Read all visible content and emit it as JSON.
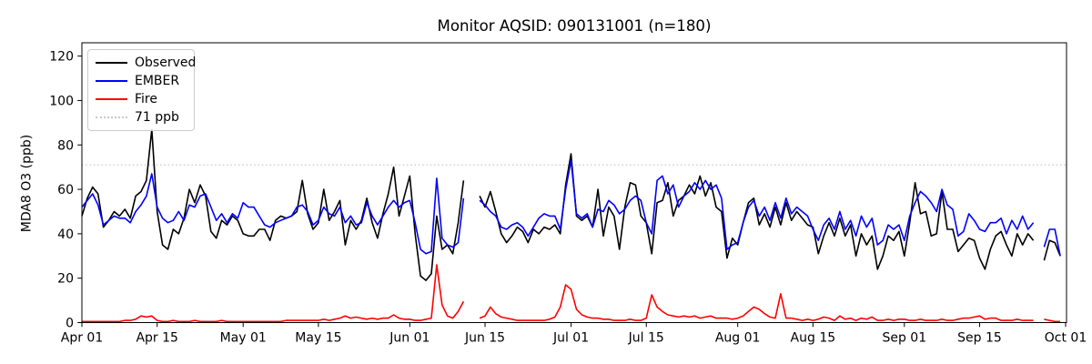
{
  "chart_data": {
    "type": "line",
    "title": "Monitor AQSID: 090131001 (n=180)",
    "ylabel": "MDA8 O3 (ppb)",
    "n_points": 180,
    "grid": false,
    "legend_position": "upper left",
    "ylim": [
      0,
      126
    ],
    "yticks": [
      0,
      20,
      40,
      60,
      80,
      100,
      120
    ],
    "total_days": 183,
    "xticks": [
      {
        "label": "Apr 01",
        "day": 0
      },
      {
        "label": "Apr 15",
        "day": 14
      },
      {
        "label": "May 01",
        "day": 30
      },
      {
        "label": "May 15",
        "day": 44
      },
      {
        "label": "Jun 01",
        "day": 61
      },
      {
        "label": "Jun 15",
        "day": 75
      },
      {
        "label": "Jul 01",
        "day": 91
      },
      {
        "label": "Jul 15",
        "day": 105
      },
      {
        "label": "Aug 01",
        "day": 122
      },
      {
        "label": "Aug 15",
        "day": 136
      },
      {
        "label": "Sep 01",
        "day": 153
      },
      {
        "label": "Sep 15",
        "day": 167
      },
      {
        "label": "Oct 01",
        "day": 183
      }
    ],
    "threshold": {
      "value": 71,
      "label": "71 ppb",
      "color": "#c8c8c8",
      "style": "dotted"
    },
    "legend": [
      {
        "label": "Observed",
        "color": "#000000",
        "style": "solid"
      },
      {
        "label": "EMBER",
        "color": "#0000ff",
        "style": "solid"
      },
      {
        "label": "Fire",
        "color": "#ff0000",
        "style": "solid"
      },
      {
        "label": "71 ppb",
        "color": "#c8c8c8",
        "style": "dotted"
      }
    ],
    "series": [
      {
        "name": "Observed",
        "color": "#000000",
        "values": [
          48,
          56,
          61,
          58,
          43,
          46,
          50,
          48,
          51,
          47,
          57,
          59,
          64,
          87,
          50,
          35,
          33,
          42,
          40,
          47,
          60,
          54,
          62,
          57,
          41,
          38,
          46,
          44,
          48,
          46,
          40,
          39,
          39,
          42,
          42,
          37,
          46,
          48,
          47,
          48,
          50,
          64,
          49,
          42,
          45,
          60,
          46,
          50,
          55,
          35,
          46,
          42,
          46,
          56,
          45,
          38,
          49,
          58,
          70,
          48,
          57,
          66,
          40,
          21,
          19,
          22,
          48,
          33,
          35,
          31,
          45,
          64,
          null,
          null,
          57,
          52,
          59,
          50,
          40,
          36,
          39,
          43,
          41,
          36,
          42,
          40,
          43,
          42,
          44,
          40,
          62,
          76,
          48,
          46,
          48,
          43,
          60,
          39,
          52,
          48,
          33,
          52,
          63,
          62,
          48,
          45,
          31,
          54,
          55,
          63,
          48,
          55,
          57,
          62,
          58,
          66,
          57,
          63,
          52,
          50,
          29,
          38,
          35,
          45,
          54,
          56,
          44,
          49,
          43,
          52,
          44,
          54,
          46,
          50,
          47,
          44,
          43,
          31,
          39,
          45,
          39,
          47,
          39,
          44,
          30,
          40,
          35,
          39,
          24,
          30,
          39,
          37,
          41,
          30,
          45,
          63,
          49,
          50,
          39,
          40,
          59,
          42,
          42,
          32,
          35,
          38,
          37,
          29,
          24,
          33,
          39,
          41,
          35,
          30,
          40,
          35,
          40,
          37,
          null,
          28,
          37,
          36,
          30
        ]
      },
      {
        "name": "EMBER",
        "color": "#0000ff",
        "values": [
          52,
          55,
          58,
          53,
          44,
          46,
          48,
          47,
          47,
          45,
          50,
          53,
          57,
          67,
          52,
          47,
          45,
          46,
          50,
          46,
          53,
          52,
          57,
          58,
          52,
          46,
          49,
          45,
          49,
          47,
          54,
          52,
          52,
          48,
          44,
          43,
          45,
          46,
          47,
          48,
          52,
          53,
          50,
          44,
          46,
          52,
          49,
          48,
          52,
          45,
          48,
          44,
          45,
          54,
          48,
          44,
          48,
          52,
          55,
          52,
          54,
          55,
          45,
          33,
          31,
          32,
          65,
          38,
          35,
          34,
          36,
          56,
          null,
          null,
          55,
          53,
          50,
          48,
          43,
          42,
          44,
          45,
          43,
          39,
          43,
          47,
          49,
          48,
          48,
          42,
          60,
          73,
          49,
          47,
          49,
          43,
          51,
          50,
          55,
          53,
          49,
          51,
          55,
          57,
          55,
          45,
          40,
          64,
          66,
          58,
          62,
          52,
          57,
          59,
          63,
          60,
          64,
          60,
          62,
          56,
          33,
          35,
          36,
          45,
          52,
          55,
          48,
          52,
          46,
          54,
          47,
          56,
          49,
          52,
          50,
          48,
          42,
          37,
          44,
          47,
          42,
          50,
          42,
          46,
          39,
          48,
          43,
          47,
          35,
          37,
          44,
          42,
          44,
          37,
          48,
          54,
          59,
          57,
          54,
          50,
          60,
          53,
          51,
          39,
          41,
          49,
          46,
          42,
          41,
          45,
          45,
          47,
          40,
          46,
          42,
          48,
          42,
          45,
          null,
          34,
          42,
          42,
          30
        ]
      },
      {
        "name": "Fire",
        "color": "#ff0000",
        "values": [
          0.5,
          0.5,
          0.5,
          0.5,
          0.5,
          0.5,
          0.5,
          0.5,
          1,
          1,
          1.5,
          3,
          2.5,
          3,
          1,
          0.5,
          0.5,
          1,
          0.5,
          0.5,
          0.5,
          1,
          0.5,
          0.5,
          0.5,
          0.5,
          1,
          0.5,
          0.5,
          0.5,
          0.5,
          0.5,
          0.5,
          0.5,
          0.5,
          0.5,
          0.5,
          0.5,
          1,
          1,
          1,
          1,
          1,
          1,
          1,
          1.5,
          1,
          1.5,
          2,
          3,
          2,
          2.5,
          2,
          1.5,
          2,
          1.5,
          2,
          2,
          3.5,
          2,
          1.5,
          1.5,
          1,
          1,
          1.5,
          2,
          26,
          8,
          3,
          2,
          5,
          9.5,
          null,
          null,
          2,
          3,
          7,
          4,
          2.5,
          2,
          1.5,
          1,
          1,
          1,
          1,
          1,
          1,
          1.5,
          2.5,
          7,
          17,
          15,
          6,
          3.5,
          2.5,
          2,
          2,
          1.5,
          1.5,
          1,
          1,
          1,
          1.5,
          1,
          1,
          2,
          12.5,
          7,
          5,
          3.5,
          3,
          2.5,
          3,
          2.5,
          3,
          2,
          2.5,
          3,
          2,
          2,
          2,
          1.5,
          2,
          3,
          5,
          7,
          6,
          4,
          2.5,
          2,
          13,
          2,
          2,
          1.5,
          1,
          1.5,
          1,
          1.5,
          2.5,
          2,
          1,
          3,
          1.5,
          2,
          1,
          2,
          1.5,
          2.5,
          1,
          1,
          1.5,
          1,
          1.5,
          1.5,
          1,
          1,
          1.5,
          1,
          1,
          1,
          1.5,
          1,
          1,
          1.5,
          2,
          2,
          2.5,
          3,
          1.5,
          2,
          2,
          1,
          1,
          1,
          1.5,
          1,
          1,
          1,
          null,
          1.5,
          1,
          0.5,
          0.5
        ]
      }
    ]
  }
}
